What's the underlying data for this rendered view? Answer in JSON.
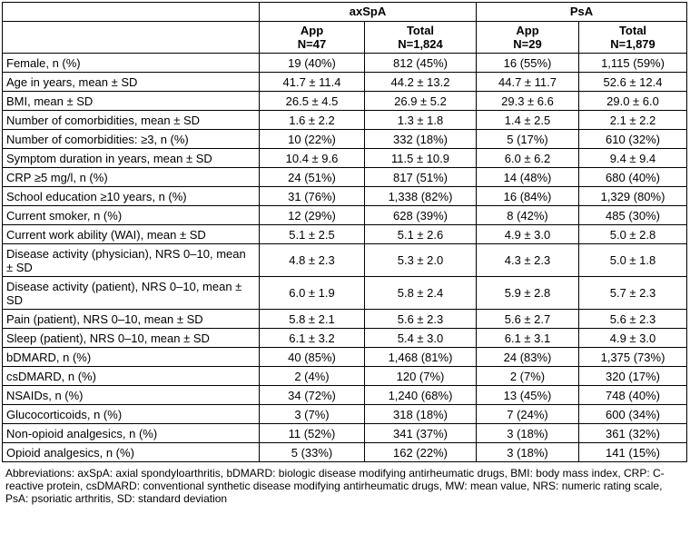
{
  "table": {
    "groups": [
      {
        "label": "axSpA"
      },
      {
        "label": "PsA"
      }
    ],
    "subheaders": [
      {
        "line1": "App",
        "line2": "N=47"
      },
      {
        "line1": "Total",
        "line2": "N=1,824"
      },
      {
        "line1": "App",
        "line2": "N=29"
      },
      {
        "line1": "Total",
        "line2": "N=1,879"
      }
    ],
    "rows": [
      {
        "label": "Female, n (%)",
        "v": [
          "19 (40%)",
          "812 (45%)",
          "16 (55%)",
          "1,115 (59%)"
        ],
        "tall": false
      },
      {
        "label": "Age in years, mean ± SD",
        "v": [
          "41.7 ± 11.4",
          "44.2 ± 13.2",
          "44.7 ± 11.7",
          "52.6 ± 12.4"
        ],
        "tall": false
      },
      {
        "label": "BMI, mean ± SD",
        "v": [
          "26.5 ± 4.5",
          "26.9 ± 5.2",
          "29.3 ± 6.6",
          "29.0 ± 6.0"
        ],
        "tall": false
      },
      {
        "label": "Number of comorbidities, mean ± SD",
        "v": [
          "1.6 ± 2.2",
          "1.3 ± 1.8",
          "1.4 ± 2.5",
          "2.1 ± 2.2"
        ],
        "tall": false
      },
      {
        "label": "Number of comorbidities: ≥3, n (%)",
        "v": [
          "10 (22%)",
          "332 (18%)",
          "5 (17%)",
          "610 (32%)"
        ],
        "tall": false
      },
      {
        "label": "Symptom duration in years, mean ± SD",
        "v": [
          "10.4 ± 9.6",
          "11.5 ± 10.9",
          "6.0 ± 6.2",
          "9.4 ± 9.4"
        ],
        "tall": false
      },
      {
        "label": "CRP ≥5 mg/l, n (%)",
        "v": [
          "24 (51%)",
          "817 (51%)",
          "14 (48%)",
          "680 (40%)"
        ],
        "tall": false
      },
      {
        "label": "School education ≥10 years, n (%)",
        "v": [
          "31 (76%)",
          "1,338 (82%)",
          "16 (84%)",
          "1,329 (80%)"
        ],
        "tall": false
      },
      {
        "label": "Current smoker, n (%)",
        "v": [
          "12 (29%)",
          "628 (39%)",
          "8 (42%)",
          "485 (30%)"
        ],
        "tall": false
      },
      {
        "label": "Current work ability (WAI), mean ± SD",
        "v": [
          "5.1 ± 2.5",
          "5.1 ± 2.6",
          "4.9 ± 3.0",
          "5.0 ± 2.8"
        ],
        "tall": false
      },
      {
        "label": "Disease activity (physician), NRS 0–10, mean ± SD",
        "v": [
          "4.8 ± 2.3",
          "5.3 ± 2.0",
          "4.3 ± 2.3",
          "5.0 ± 1.8"
        ],
        "tall": true
      },
      {
        "label": "Disease activity (patient), NRS 0–10, mean ± SD",
        "v": [
          "6.0 ± 1.9",
          "5.8 ± 2.4",
          "5.9 ± 2.8",
          "5.7 ± 2.3"
        ],
        "tall": true
      },
      {
        "label": "Pain (patient), NRS 0–10, mean ± SD",
        "v": [
          "5.8 ± 2.1",
          "5.6 ± 2.3",
          "5.6 ± 2.7",
          "5.6 ± 2.3"
        ],
        "tall": false
      },
      {
        "label": "Sleep (patient), NRS 0–10, mean ± SD",
        "v": [
          "6.1 ± 3.2",
          "5.4 ± 3.0",
          "6.1 ± 3.1",
          "4.9 ± 3.0"
        ],
        "tall": false
      },
      {
        "label": "bDMARD, n (%)",
        "v": [
          "40 (85%)",
          "1,468 (81%)",
          "24 (83%)",
          "1,375 (73%)"
        ],
        "tall": false
      },
      {
        "label": "csDMARD, n (%)",
        "v": [
          "2 (4%)",
          "120 (7%)",
          "2 (7%)",
          "320 (17%)"
        ],
        "tall": false
      },
      {
        "label": "NSAIDs, n (%)",
        "v": [
          "34 (72%)",
          "1,240 (68%)",
          "13 (45%)",
          "748 (40%)"
        ],
        "tall": false
      },
      {
        "label": "Glucocorticoids, n (%)",
        "v": [
          "3 (7%)",
          "318 (18%)",
          "7 (24%)",
          "600 (34%)"
        ],
        "tall": false
      },
      {
        "label": "Non-opioid analgesics, n (%)",
        "v": [
          "11 (52%)",
          "341 (37%)",
          "3 (18%)",
          "361 (32%)"
        ],
        "tall": false
      },
      {
        "label": "Opioid analgesics, n (%)",
        "v": [
          "5 (33%)",
          "162 (22%)",
          "3 (18%)",
          "141 (15%)"
        ],
        "tall": false
      }
    ]
  },
  "footnote": "Abbreviations: axSpA: axial spondyloarthritis, bDMARD: biologic disease modifying antirheumatic drugs, BMI: body mass index, CRP: C-reactive protein, csDMARD: conventional synthetic disease modifying antirheumatic drugs, MW: mean value, NRS: numeric rating scale, PsA: psoriatic arthritis, SD: standard deviation"
}
